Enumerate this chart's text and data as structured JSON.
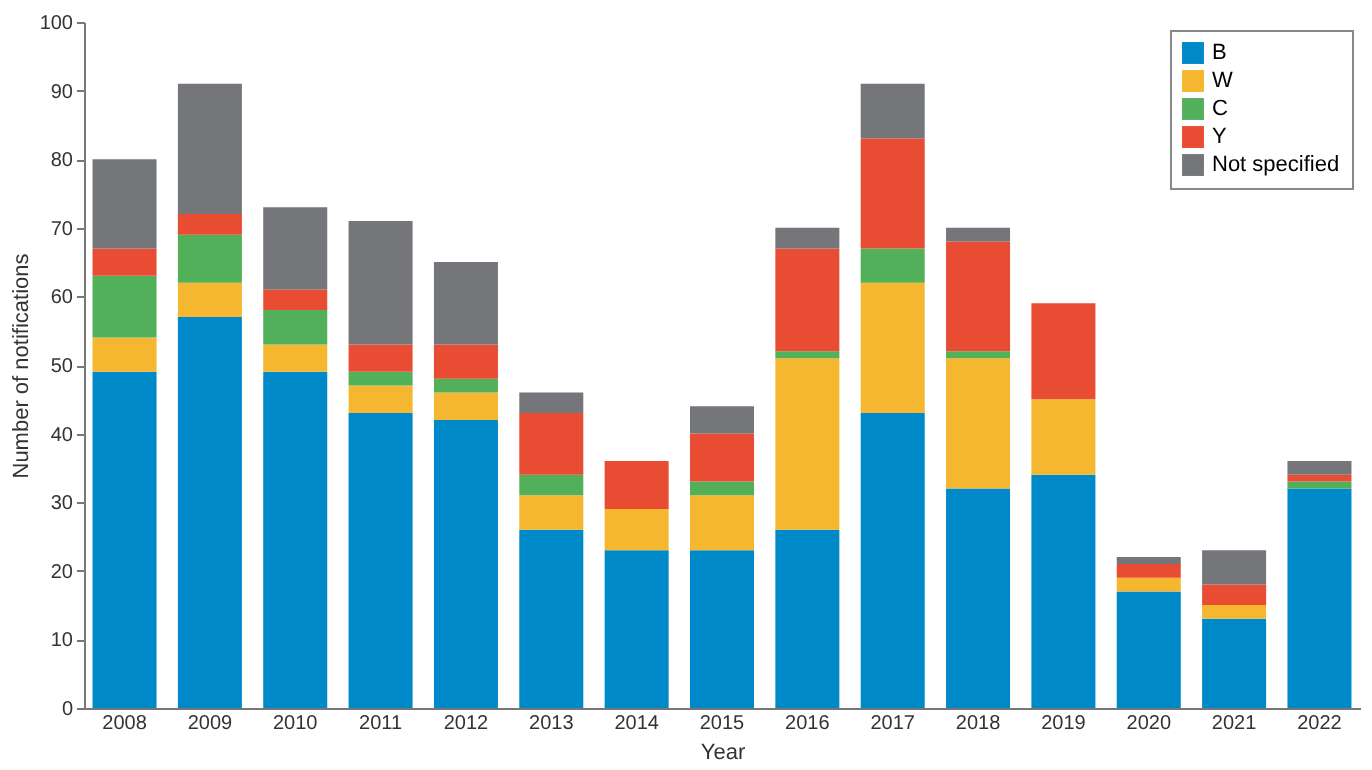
{
  "chart_data": {
    "type": "bar",
    "stacked": true,
    "xlabel": "Year",
    "ylabel": "Number of notifications",
    "categories": [
      "2008",
      "2009",
      "2010",
      "2011",
      "2012",
      "2013",
      "2014",
      "2015",
      "2016",
      "2017",
      "2018",
      "2019",
      "2020",
      "2021",
      "2022"
    ],
    "series": [
      {
        "name": "B",
        "color": "#0089c8",
        "values": [
          49,
          57,
          49,
          43,
          42,
          26,
          23,
          23,
          26,
          43,
          32,
          34,
          17,
          13,
          32
        ]
      },
      {
        "name": "W",
        "color": "#f4b72f",
        "values": [
          5,
          5,
          4,
          4,
          4,
          5,
          6,
          8,
          25,
          19,
          19,
          11,
          2,
          2,
          0
        ]
      },
      {
        "name": "C",
        "color": "#53b05a",
        "values": [
          9,
          7,
          5,
          2,
          2,
          3,
          0,
          2,
          1,
          5,
          1,
          0,
          0,
          0,
          1
        ]
      },
      {
        "name": "Y",
        "color": "#e84c32",
        "values": [
          4,
          3,
          3,
          4,
          5,
          9,
          7,
          7,
          15,
          16,
          16,
          14,
          2,
          3,
          1
        ]
      },
      {
        "name": "Not specified",
        "color": "#75767a",
        "values": [
          13,
          19,
          12,
          18,
          12,
          3,
          0,
          4,
          3,
          8,
          2,
          0,
          1,
          5,
          2
        ]
      }
    ],
    "ylim": [
      0,
      100
    ],
    "yticks": [
      0,
      10,
      20,
      30,
      40,
      50,
      60,
      70,
      80,
      90,
      100
    ],
    "grid": false,
    "legend": "top right"
  }
}
